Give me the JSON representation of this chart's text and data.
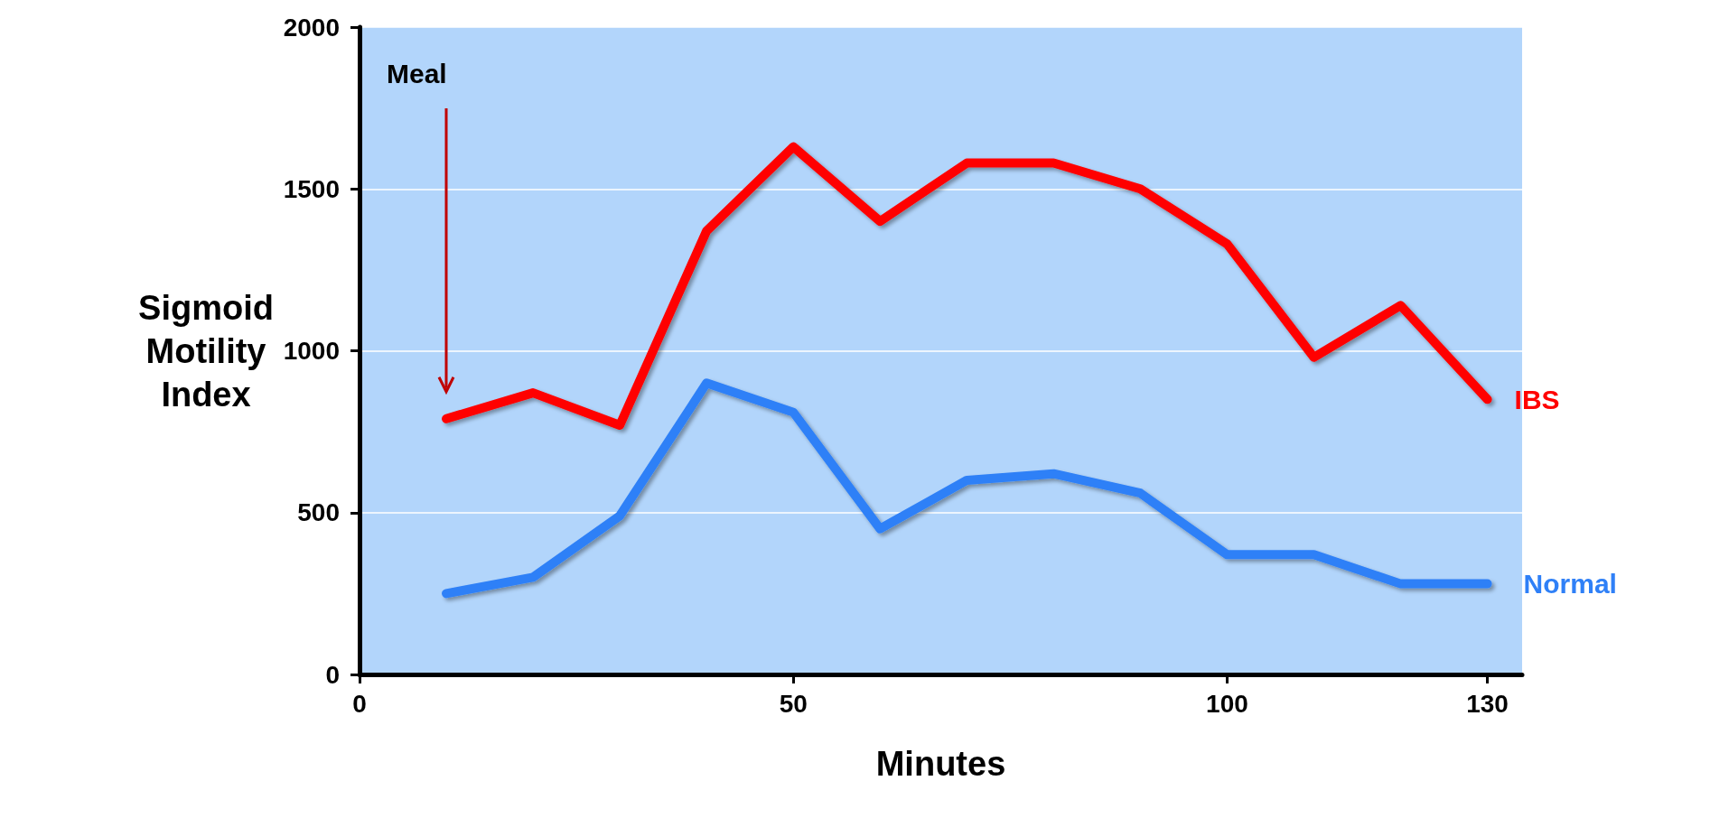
{
  "chart_data": {
    "type": "line",
    "xlabel": "Minutes",
    "ylabel": "Sigmoid Motility Index",
    "x": [
      10,
      20,
      30,
      40,
      50,
      60,
      70,
      80,
      90,
      100,
      110,
      120,
      130
    ],
    "series": [
      {
        "name": "IBS",
        "color": "#ff0000",
        "values": [
          790,
          870,
          770,
          1370,
          1630,
          1400,
          1580,
          1580,
          1500,
          1330,
          980,
          1140,
          850
        ]
      },
      {
        "name": "Normal",
        "color": "#2f80f7",
        "values": [
          250,
          300,
          490,
          900,
          810,
          450,
          600,
          620,
          560,
          370,
          370,
          280,
          280
        ]
      }
    ],
    "xlim": [
      0,
      134
    ],
    "xticks": [
      0,
      50,
      100,
      130
    ],
    "ylim": [
      0,
      2000
    ],
    "yticks": [
      0,
      500,
      1000,
      1500,
      2000
    ],
    "grid": "y",
    "legend": false,
    "line_style": "solid",
    "annotations": [
      "Meal"
    ]
  }
}
